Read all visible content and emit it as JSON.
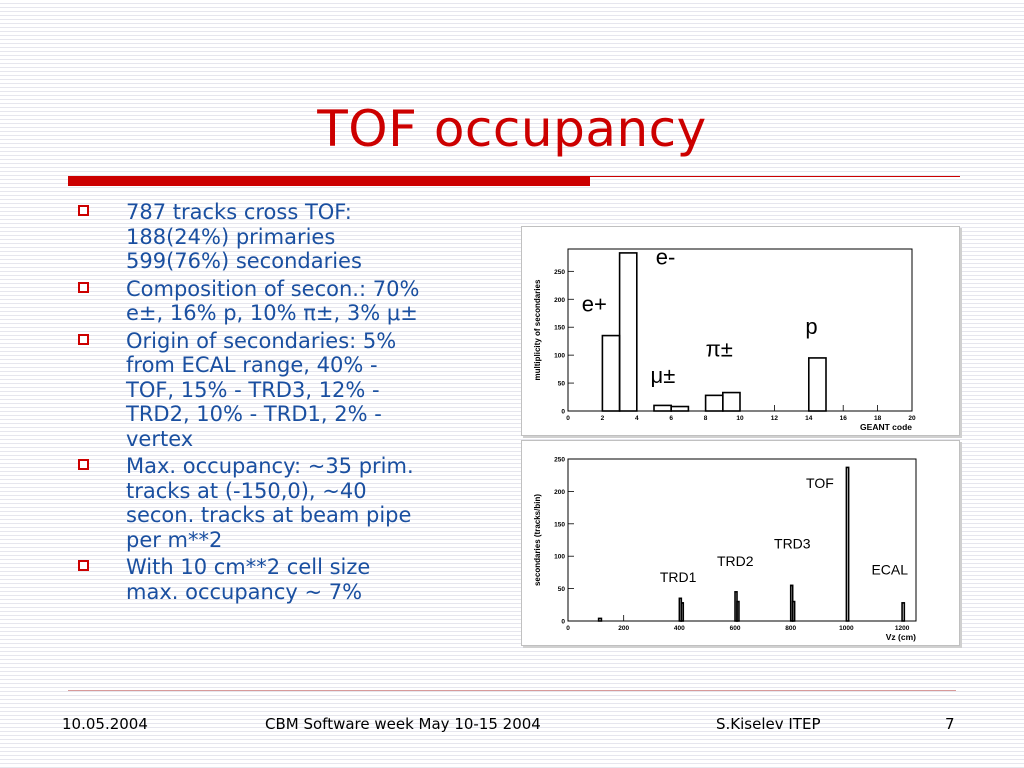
{
  "slide": {
    "title": "TOF occupancy",
    "accent_color": "#cc0000",
    "text_color": "#1a4fa0"
  },
  "bullets": [
    {
      "lines": [
        "787 tracks cross TOF:",
        "188(24%) primaries",
        "599(76%) secondaries"
      ]
    },
    {
      "lines": [
        "Composition of secon.: 70%",
        "e±, 16% p, 10% π±, 3% μ±"
      ]
    },
    {
      "lines": [
        "Origin of secondaries: 5%",
        "from ECAL range, 40% -",
        "TOF, 15% - TRD3, 12% -",
        "TRD2, 10% - TRD1, 2% -",
        "vertex"
      ]
    },
    {
      "lines": [
        "Max. occupancy: ~35 prim.",
        "tracks at (-150,0), ~40",
        "secon. tracks at beam pipe",
        "per m**2"
      ]
    },
    {
      "lines": [
        "With 10 cm**2 cell size",
        "max. occupancy ~ 7%"
      ]
    }
  ],
  "footer": {
    "date": "10.05.2004",
    "event": "CBM Software week May 10-15 2004",
    "author": "S.Kiselev ITEP",
    "page": "7"
  },
  "chart_data": [
    {
      "type": "bar",
      "ylabel": "multiplicity of secondaries",
      "xlabel": "GEANT code",
      "xlim": [
        0,
        20
      ],
      "ylim": [
        0,
        290
      ],
      "xticks": [
        0,
        2,
        4,
        6,
        8,
        10,
        12,
        14,
        16,
        18,
        20
      ],
      "yticks": [
        0,
        50,
        100,
        150,
        200,
        250
      ],
      "bins": [
        {
          "x0": 2,
          "x1": 3,
          "value": 135
        },
        {
          "x0": 3,
          "x1": 4,
          "value": 283
        },
        {
          "x0": 5,
          "x1": 6,
          "value": 10
        },
        {
          "x0": 6,
          "x1": 7,
          "value": 8
        },
        {
          "x0": 8,
          "x1": 9,
          "value": 28
        },
        {
          "x0": 9,
          "x1": 10,
          "value": 33
        },
        {
          "x0": 14,
          "x1": 15,
          "value": 95
        }
      ],
      "annotations": [
        {
          "text": "e-",
          "x": 5.1,
          "y": 262
        },
        {
          "text": "e+",
          "x": 0.8,
          "y": 178
        },
        {
          "text": "p",
          "x": 13.8,
          "y": 138
        },
        {
          "text": "π±",
          "x": 8.0,
          "y": 98
        },
        {
          "text": "μ±",
          "x": 4.8,
          "y": 50
        }
      ]
    },
    {
      "type": "bar",
      "ylabel": "secondaries (tracks/bin)",
      "xlabel": "Vz (cm)",
      "xlim": [
        0,
        1250
      ],
      "ylim": [
        0,
        250
      ],
      "xticks": [
        0,
        200,
        400,
        600,
        800,
        1000,
        1200
      ],
      "yticks": [
        0,
        50,
        100,
        150,
        200,
        250
      ],
      "bins": [
        {
          "x0": 110,
          "x1": 120,
          "value": 4
        },
        {
          "x0": 400,
          "x1": 407,
          "value": 35
        },
        {
          "x0": 407,
          "x1": 414,
          "value": 28
        },
        {
          "x0": 600,
          "x1": 607,
          "value": 45
        },
        {
          "x0": 607,
          "x1": 614,
          "value": 30
        },
        {
          "x0": 800,
          "x1": 807,
          "value": 55
        },
        {
          "x0": 807,
          "x1": 814,
          "value": 30
        },
        {
          "x0": 1000,
          "x1": 1008,
          "value": 237
        },
        {
          "x0": 1200,
          "x1": 1208,
          "value": 28
        }
      ],
      "annotations": [
        {
          "text": "TOF",
          "x": 855,
          "y": 205
        },
        {
          "text": "TRD3",
          "x": 740,
          "y": 112
        },
        {
          "text": "TRD2",
          "x": 535,
          "y": 85
        },
        {
          "text": "TRD1",
          "x": 330,
          "y": 60
        },
        {
          "text": "ECAL",
          "x": 1090,
          "y": 72
        }
      ]
    }
  ]
}
